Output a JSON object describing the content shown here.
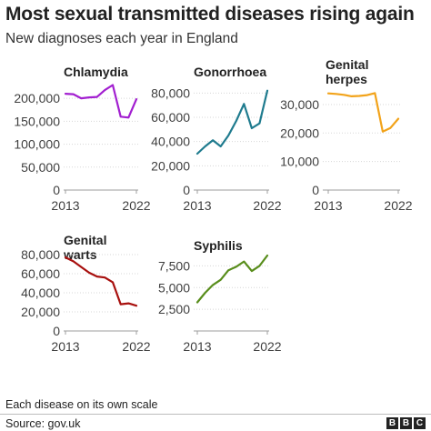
{
  "header": {
    "title": "Most sexual transmitted diseases rising again",
    "subtitle": "New diagnoses each year in England"
  },
  "footer": {
    "note": "Each disease on its own scale",
    "source": "Source: gov.uk",
    "logo_letters": [
      "B",
      "B",
      "C"
    ]
  },
  "chart_data": [
    {
      "type": "line",
      "title": "Chlamydia",
      "color": "#a21fd0",
      "x": [
        2013,
        2014,
        2015,
        2016,
        2017,
        2018,
        2019,
        2020,
        2021,
        2022
      ],
      "values": [
        210000,
        209000,
        200000,
        202000,
        203000,
        218000,
        229000,
        160000,
        158000,
        198000
      ],
      "ylim": [
        0,
        230000
      ],
      "yticks": [
        0,
        50000,
        100000,
        150000,
        200000
      ],
      "ytick_labels": [
        "0",
        "50,000",
        "100,000",
        "150,000",
        "200,000"
      ],
      "xtick_labels": [
        "2013",
        "2022"
      ]
    },
    {
      "type": "line",
      "title": "Gonorrhoea",
      "color": "#1f7b8e",
      "x": [
        2013,
        2014,
        2015,
        2016,
        2017,
        2018,
        2019,
        2020,
        2021,
        2022
      ],
      "values": [
        30000,
        36000,
        41000,
        36000,
        45000,
        57000,
        71000,
        51000,
        55000,
        82000
      ],
      "ylim": [
        0,
        87000
      ],
      "yticks": [
        0,
        20000,
        40000,
        60000,
        80000
      ],
      "ytick_labels": [
        "0",
        "20,000",
        "40,000",
        "60,000",
        "80,000"
      ],
      "xtick_labels": [
        "2013",
        "2022"
      ]
    },
    {
      "type": "line",
      "title": "Genital herpes",
      "title_lines": [
        "Genital",
        "herpes"
      ],
      "color": "#f2a31a",
      "x": [
        2013,
        2014,
        2015,
        2016,
        2017,
        2018,
        2019,
        2020,
        2021,
        2022
      ],
      "values": [
        33900,
        33700,
        33400,
        32900,
        33000,
        33300,
        34000,
        20500,
        21800,
        25000
      ],
      "ylim": [
        0,
        37000
      ],
      "yticks": [
        0,
        10000,
        20000,
        30000
      ],
      "ytick_labels": [
        "0",
        "10,000",
        "20,000",
        "30,000"
      ],
      "xtick_labels": [
        "2013",
        "2022"
      ]
    },
    {
      "type": "line",
      "title": "Genital warts",
      "title_lines": [
        "Genital",
        "warts"
      ],
      "color": "#a8100e",
      "x": [
        2013,
        2014,
        2015,
        2016,
        2017,
        2018,
        2019,
        2020,
        2021,
        2022
      ],
      "values": [
        77000,
        73000,
        67000,
        61000,
        57000,
        56000,
        51000,
        28000,
        29000,
        26500
      ],
      "ylim": [
        0,
        80000
      ],
      "yticks": [
        0,
        20000,
        40000,
        60000,
        80000
      ],
      "ytick_labels": [
        "0",
        "20,000",
        "40,000",
        "60,000",
        "80,000"
      ],
      "xtick_labels": [
        "2013",
        "2022"
      ]
    },
    {
      "type": "line",
      "title": "Syphilis",
      "color": "#588d1b",
      "x": [
        2013,
        2014,
        2015,
        2016,
        2017,
        2018,
        2019,
        2020,
        2021,
        2022
      ],
      "values": [
        3300,
        4400,
        5300,
        5900,
        7000,
        7400,
        8000,
        6900,
        7500,
        8700
      ],
      "ylim": [
        0,
        8800
      ],
      "yticks": [
        2500,
        5000,
        7500
      ],
      "ytick_labels": [
        "2,500",
        "5,000",
        "7,500"
      ],
      "xtick_labels": [
        "2013",
        "2022"
      ]
    }
  ]
}
